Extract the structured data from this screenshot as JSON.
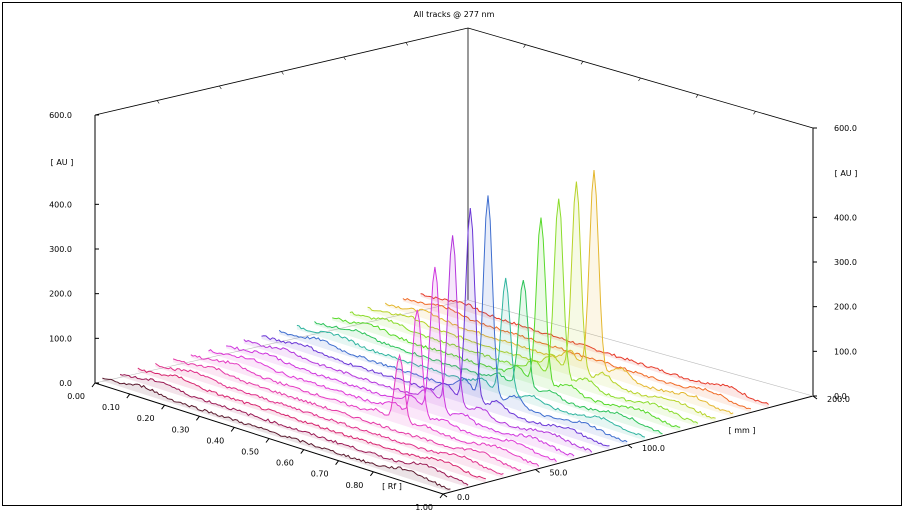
{
  "chart_data": {
    "type": "line",
    "title": "All tracks @ 277 nm",
    "yaxis": {
      "label": "[ AU ]",
      "ticks": [
        "0.0",
        "100.0",
        "200.0",
        "300.0",
        "400.0",
        "600.0"
      ],
      "range": [
        0,
        600
      ]
    },
    "xaxis": {
      "label": "[ Rf ]",
      "ticks": [
        "0.00",
        "0.10",
        "0.20",
        "0.30",
        "0.40",
        "0.50",
        "0.60",
        "0.70",
        "0.80",
        "1.00"
      ],
      "range": [
        0,
        1
      ]
    },
    "zaxis": {
      "label": "[ mm ]",
      "ticks": [
        "0.0",
        "50.0",
        "100.0",
        "200.0"
      ],
      "range": [
        0,
        200
      ]
    },
    "right_yaxis": {
      "label": "[ AU ]",
      "ticks": [
        "0.0",
        "100.0",
        "200.0",
        "300.0",
        "400.0",
        "600.0"
      ]
    },
    "peak_rf": 0.6,
    "series": [
      {
        "track": 1,
        "color": "#5a1a2e",
        "peak": 0
      },
      {
        "track": 2,
        "color": "#9b1b55",
        "peak": 0
      },
      {
        "track": 3,
        "color": "#d6246e",
        "peak": 0
      },
      {
        "track": 4,
        "color": "#e0308a",
        "peak": 0
      },
      {
        "track": 5,
        "color": "#e53aa6",
        "peak": 0
      },
      {
        "track": 6,
        "color": "#e43bc2",
        "peak": 145
      },
      {
        "track": 7,
        "color": "#df3ad7",
        "peak": 240
      },
      {
        "track": 8,
        "color": "#cf37de",
        "peak": 325
      },
      {
        "track": 9,
        "color": "#b437dc",
        "peak": 385
      },
      {
        "track": 10,
        "color": "#6a36d6",
        "peak": 435
      },
      {
        "track": 11,
        "color": "#3f6ecf",
        "peak": 450
      },
      {
        "track": 12,
        "color": "#31b5a0",
        "peak": 255
      },
      {
        "track": 13,
        "color": "#2ec35a",
        "peak": 245
      },
      {
        "track": 14,
        "color": "#57d92a",
        "peak": 370
      },
      {
        "track": 15,
        "color": "#8bdc2c",
        "peak": 405
      },
      {
        "track": 16,
        "color": "#b8d32a",
        "peak": 430
      },
      {
        "track": 17,
        "color": "#e4b72f",
        "peak": 445
      },
      {
        "track": 18,
        "color": "#f06a26",
        "peak": 0
      },
      {
        "track": 19,
        "color": "#e63a2a",
        "peak": 0
      }
    ]
  }
}
